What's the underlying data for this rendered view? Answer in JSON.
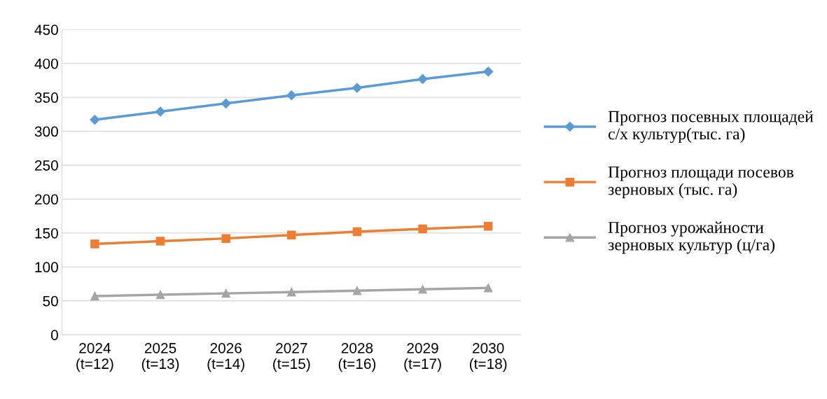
{
  "chart_data": {
    "type": "line",
    "categories": [
      "2024\n(t=12)",
      "2025\n(t=13)",
      "2026\n(t=14)",
      "2027\n(t=15)",
      "2028\n(t=16)",
      "2029\n(t=17)",
      "2030\n(t=18)"
    ],
    "series": [
      {
        "name": "Прогноз посевных площадей с/х культур(тыс. га)",
        "color": "#5b9bd5",
        "marker": "diamond",
        "values": [
          317,
          329,
          341,
          353,
          364,
          377,
          388
        ]
      },
      {
        "name": "Прогноз площади посевов зерновых (тыс. га)",
        "color": "#ed7d31",
        "marker": "square",
        "values": [
          134,
          138,
          142,
          147,
          152,
          156,
          160
        ]
      },
      {
        "name": "Прогноз урожайности зерновых культур (ц/га)",
        "color": "#a5a5a5",
        "marker": "triangle",
        "values": [
          57,
          59,
          61,
          63,
          65,
          67,
          69
        ]
      }
    ],
    "ylim": [
      0,
      450
    ],
    "yticks": [
      0,
      50,
      100,
      150,
      200,
      250,
      300,
      350,
      400,
      450
    ],
    "grid": "y",
    "legend": "right",
    "line_style": "solid"
  }
}
